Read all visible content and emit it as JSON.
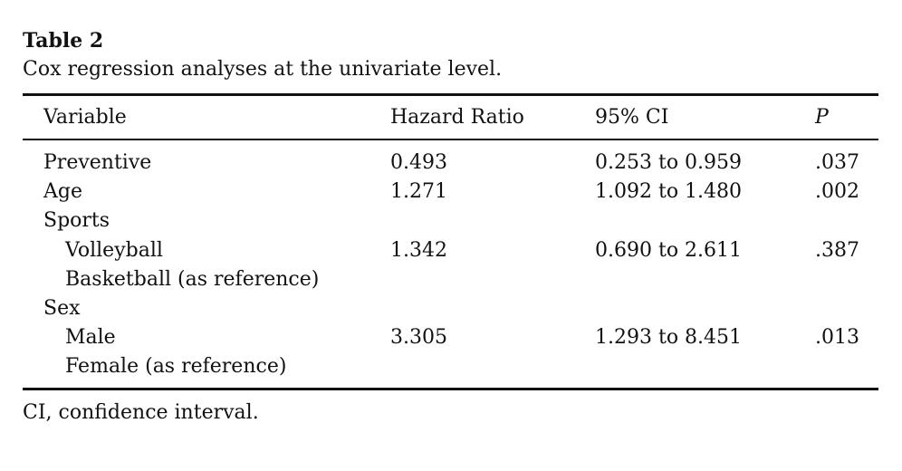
{
  "header": {
    "title": "Table 2",
    "caption": "Cox regression analyses at the univariate level."
  },
  "table": {
    "columns": [
      {
        "key": "variable",
        "label": "Variable"
      },
      {
        "key": "hazard_ratio",
        "label": "Hazard Ratio"
      },
      {
        "key": "ci",
        "label": "95% CI"
      },
      {
        "key": "p",
        "label": "P",
        "italic": true
      }
    ],
    "rows": [
      {
        "variable": "Preventive",
        "hazard_ratio": "0.493",
        "ci": "0.253 to 0.959",
        "p": ".037"
      },
      {
        "variable": "Age",
        "hazard_ratio": "1.271",
        "ci": "1.092 to 1.480",
        "p": ".002"
      },
      {
        "variable": "Sports"
      },
      {
        "variable": "Volleyball",
        "level": 1,
        "hazard_ratio": "1.342",
        "ci": "0.690 to 2.611",
        "p": ".387"
      },
      {
        "variable": "Basketball (as reference)",
        "level": 1
      },
      {
        "variable": "Sex"
      },
      {
        "variable": "Male",
        "level": 1,
        "hazard_ratio": "3.305",
        "ci": "1.293 to 8.451",
        "p": ".013"
      },
      {
        "variable": "Female (as reference)",
        "level": 1
      }
    ]
  },
  "footnote": "CI, confidence interval."
}
